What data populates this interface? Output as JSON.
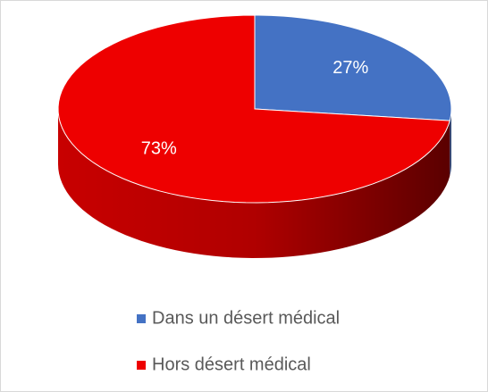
{
  "chart_data": {
    "type": "pie",
    "categories": [
      "Dans un désert médical",
      "Hors désert médical"
    ],
    "values": [
      27,
      73
    ],
    "value_labels": [
      "27%",
      "73%"
    ],
    "colors": [
      "#4472c4",
      "#ee0000"
    ],
    "legend": "bottom"
  }
}
